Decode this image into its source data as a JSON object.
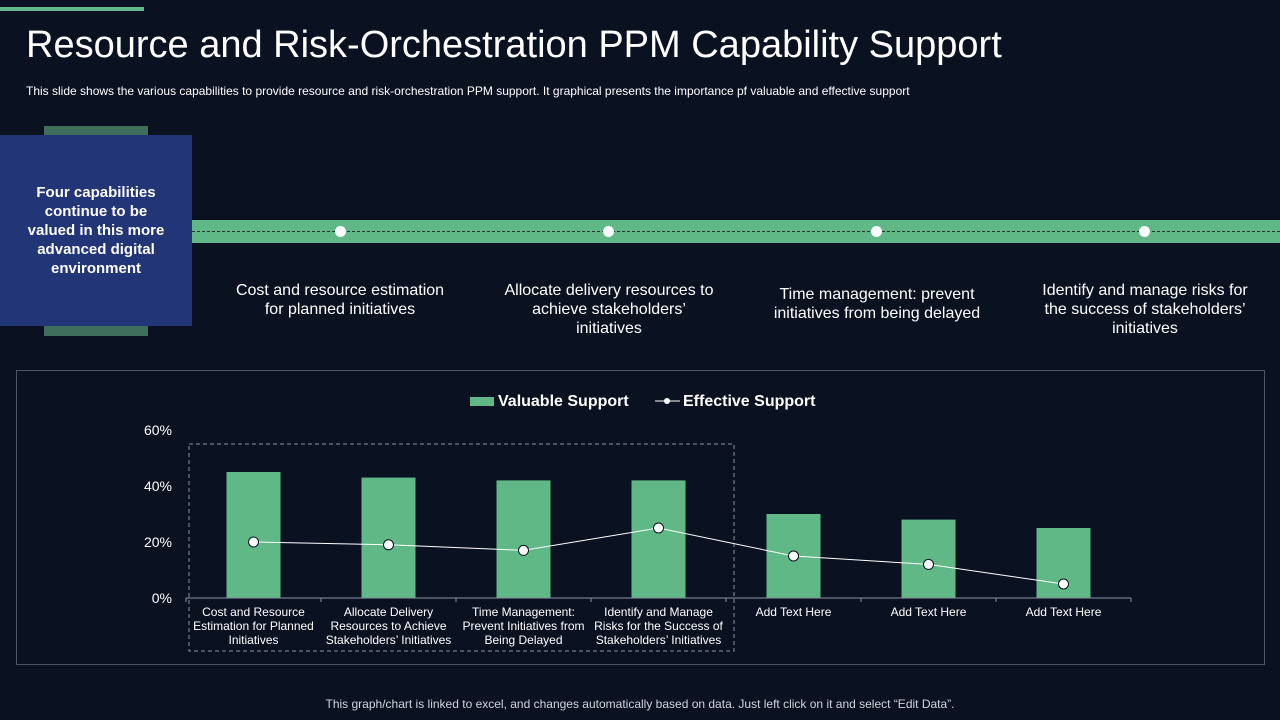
{
  "title": "Resource and Risk-Orchestration PPM Capability Support",
  "subtitle": "This slide shows the various  capabilities to provide  resource and risk-orchestration PPM support. It graphical  presents the importance  pf valuable  and effective  support",
  "side_box": {
    "text": "Four capabilities continue to be valued in this more advanced digital environment"
  },
  "capabilities": [
    "Cost and resource estimation for planned initiatives",
    "Allocate delivery resources to achieve stakeholders’ initiatives",
    "Time management: prevent initiatives from being delayed",
    "Identify  and manage risks for the success of stakeholders’ initiatives"
  ],
  "colors": {
    "background": "#0a1222",
    "accent_green": "#5fb886",
    "side_box": "#213577",
    "strip": "#3f6f5c"
  },
  "chart_data": {
    "type": "bar",
    "categories": [
      [
        "Cost and Resource",
        "Estimation for Planned",
        "Initiatives"
      ],
      [
        "Allocate Delivery",
        "Resources to Achieve",
        "Stakeholders’ Initiatives"
      ],
      [
        "Time Management:",
        "Prevent Initiatives from",
        "Being Delayed"
      ],
      [
        "Identify and Manage",
        "Risks for the Success of",
        "Stakeholders’ Initiatives"
      ],
      [
        "Add Text Here"
      ],
      [
        "Add Text Here"
      ],
      [
        "Add Text Here"
      ]
    ],
    "series": [
      {
        "name": "Valuable Support",
        "type": "bar",
        "color": "#5fb886",
        "values": [
          45,
          43,
          42,
          42,
          30,
          28,
          25
        ]
      },
      {
        "name": "Effective Support",
        "type": "line",
        "color": "#ffffff",
        "values": [
          20,
          19,
          17,
          25,
          15,
          12,
          5
        ]
      }
    ],
    "ylim": [
      0,
      60
    ],
    "yticks": [
      "0%",
      "20%",
      "40%",
      "60%"
    ],
    "legend": "top-center",
    "grid": false
  },
  "footer": "This graph/chart is linked to excel,  and changes automatically based on data. Just left click on it and select “Edit Data”."
}
